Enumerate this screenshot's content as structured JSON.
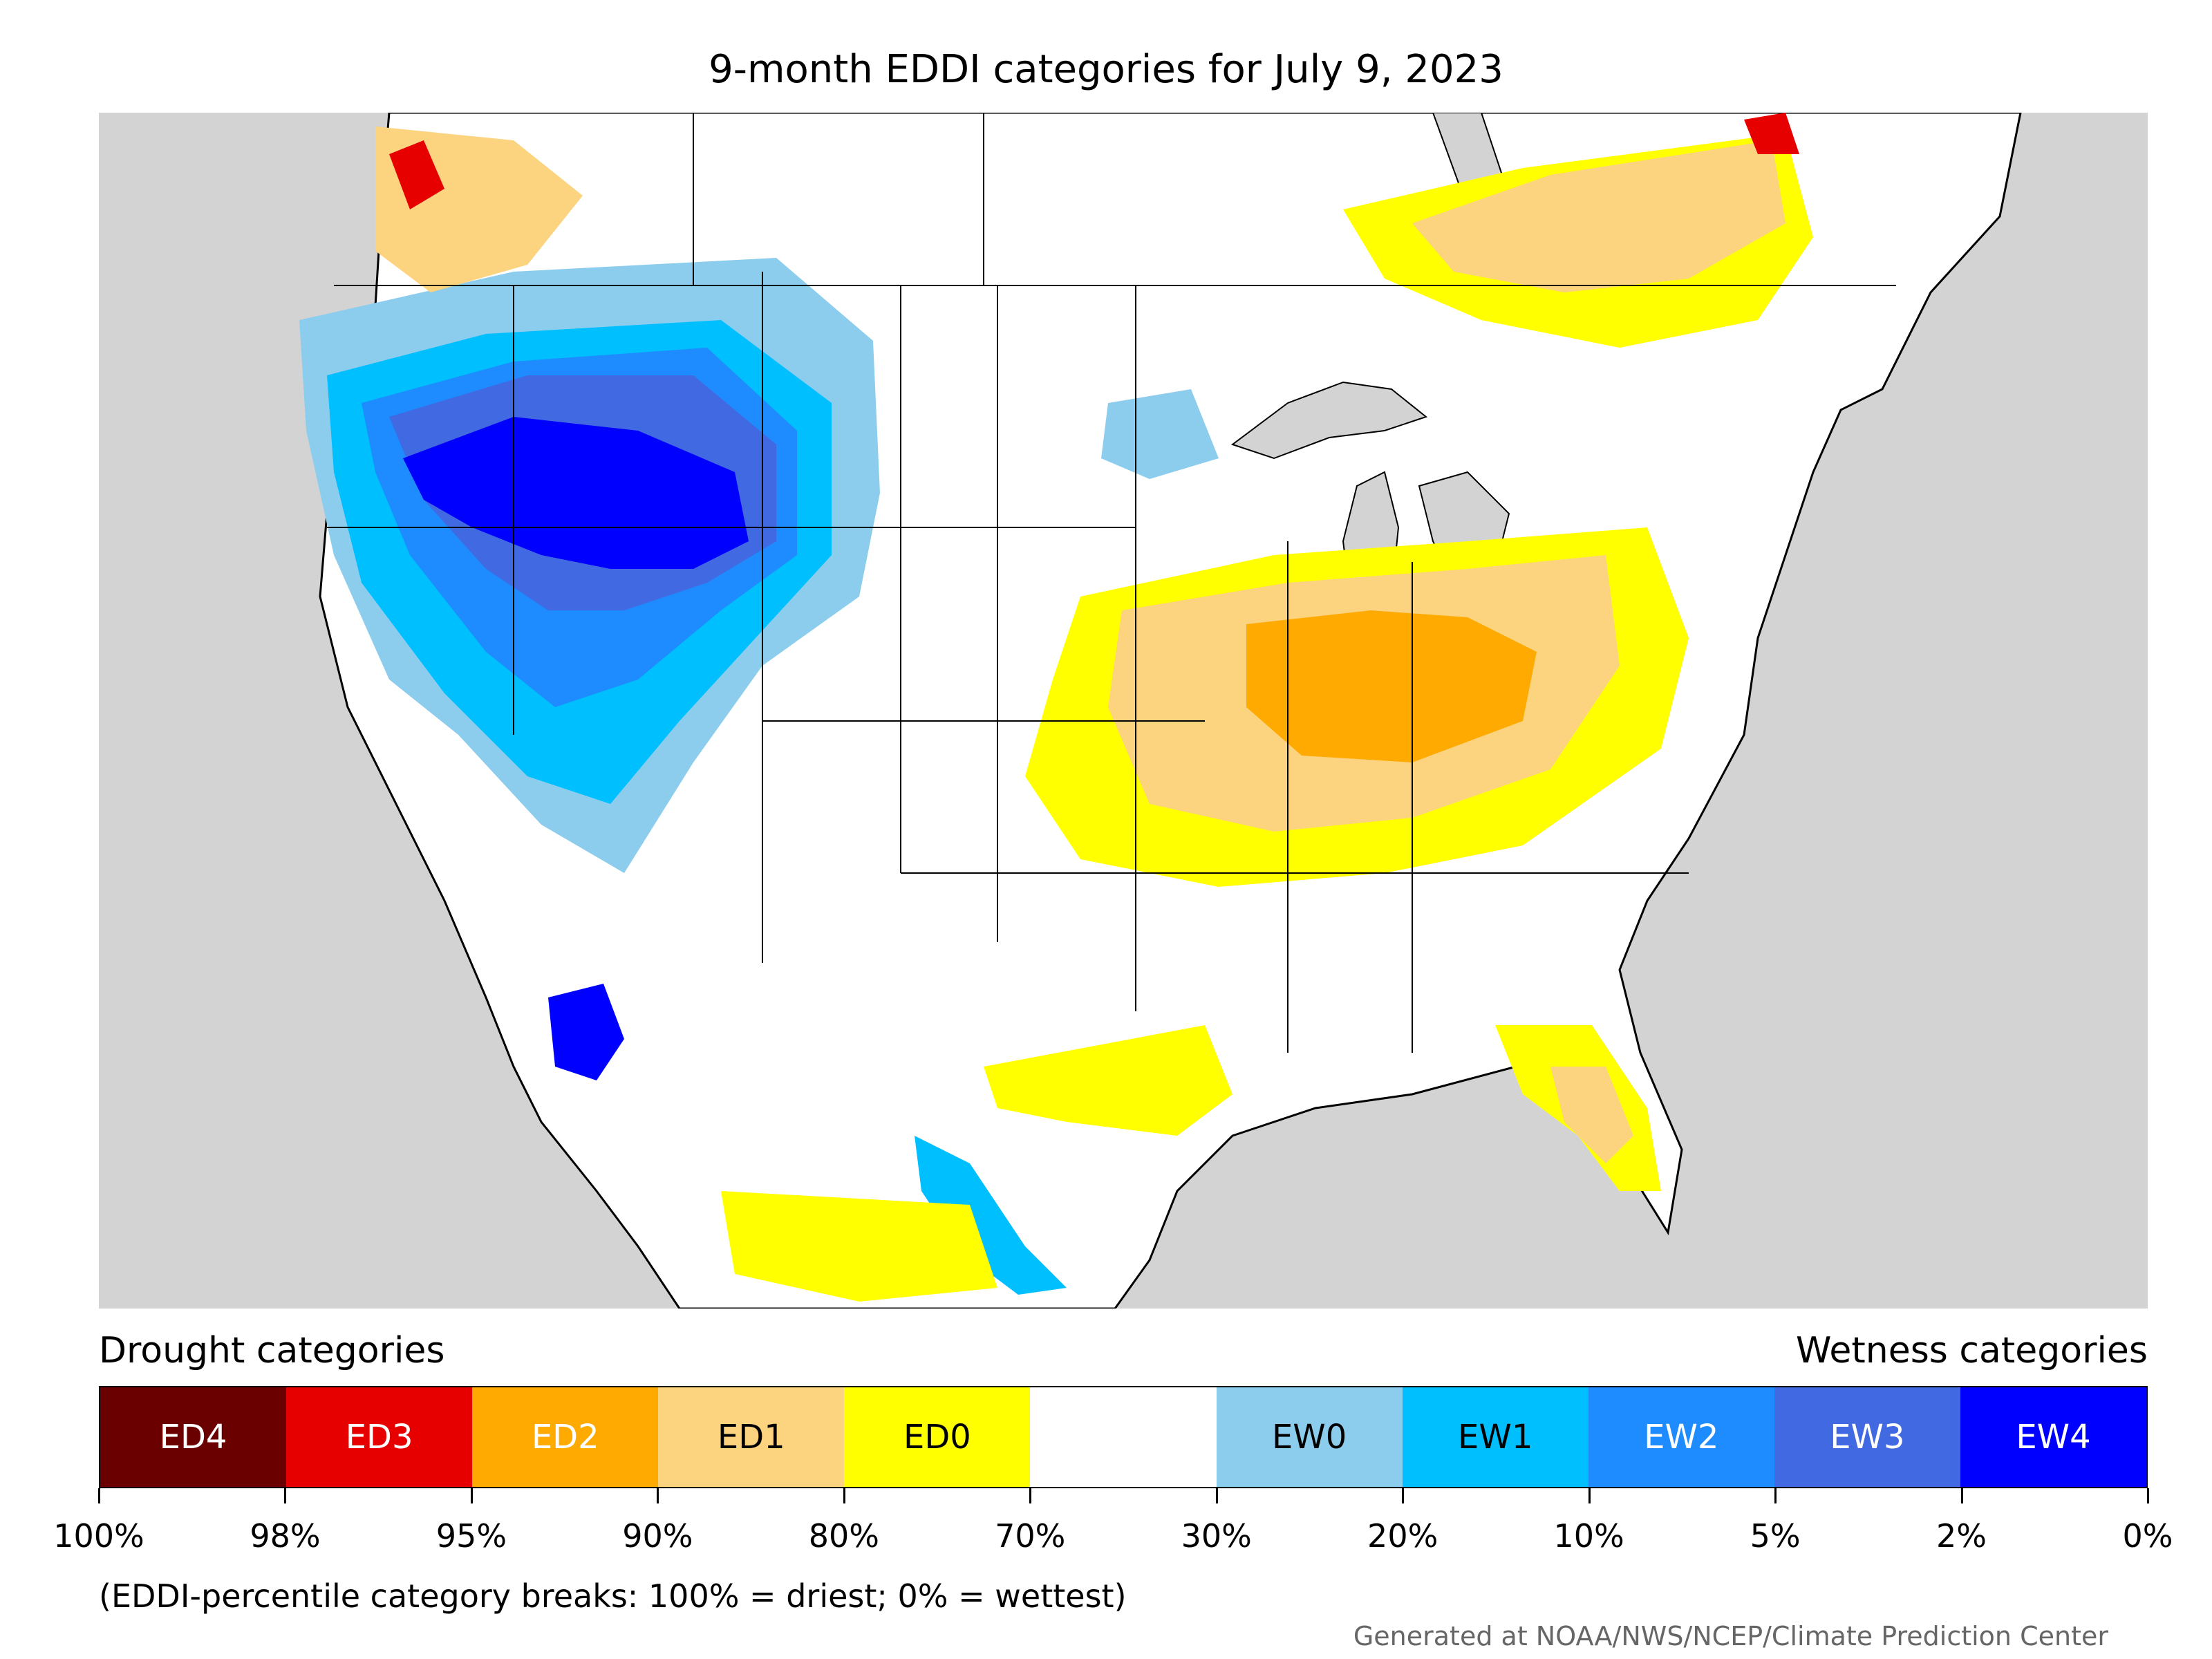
{
  "title": "9-month EDDI categories for July 9, 2023",
  "legend": {
    "drought_heading": "Drought categories",
    "wetness_heading": "Wetness categories",
    "categories": [
      {
        "label": "ED4",
        "color": "#6b0000"
      },
      {
        "label": "ED3",
        "color": "#e60000"
      },
      {
        "label": "ED2",
        "color": "#ffaa00"
      },
      {
        "label": "ED1",
        "color": "#fcd37f"
      },
      {
        "label": "ED0",
        "color": "#ffff00"
      },
      {
        "label": "",
        "color": "#ffffff"
      },
      {
        "label": "EW0",
        "color": "#8ccdee"
      },
      {
        "label": "EW1",
        "color": "#00bfff"
      },
      {
        "label": "EW2",
        "color": "#1e8bff"
      },
      {
        "label": "EW3",
        "color": "#4169e1"
      },
      {
        "label": "EW4",
        "color": "#0000ff"
      }
    ],
    "breaks": [
      "100%",
      "98%",
      "95%",
      "90%",
      "80%",
      "70%",
      "30%",
      "20%",
      "10%",
      "5%",
      "2%",
      "0%"
    ],
    "note": "(EDDI-percentile category breaks: 100% = driest; 0% = wettest)"
  },
  "credit": "Generated at NOAA/NWS/NCEP/Climate Prediction Center",
  "colors": {
    "ocean": "#d3d3d3",
    "land": "#ffffff",
    "border": "#000000"
  }
}
